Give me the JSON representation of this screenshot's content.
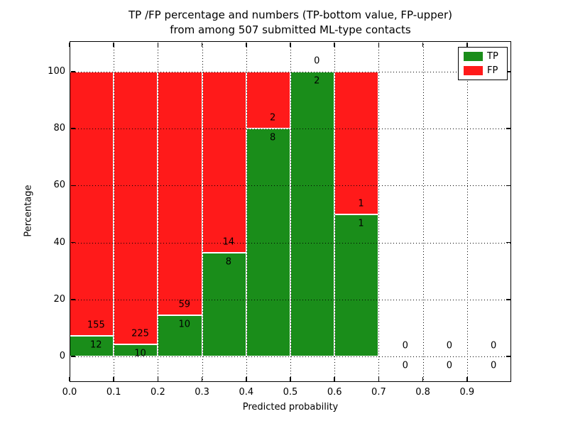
{
  "chart_data": {
    "type": "bar",
    "subtype": "stacked_percentage",
    "title_lines": [
      "TP /FP percentage and numbers (TP-bottom value, FP-upper)",
      "from among 507 submitted ML-type contacts"
    ],
    "xlabel": "Predicted probability",
    "ylabel": "Percentage",
    "xlim": [
      0.0,
      1.0
    ],
    "ylim": [
      0,
      100
    ],
    "grid": "dotted",
    "x_ticks": [
      {
        "value": 0.0,
        "label": "0.0"
      },
      {
        "value": 0.1,
        "label": "0.1"
      },
      {
        "value": 0.2,
        "label": "0.2"
      },
      {
        "value": 0.3,
        "label": "0.3"
      },
      {
        "value": 0.4,
        "label": "0.4"
      },
      {
        "value": 0.5,
        "label": "0.5"
      },
      {
        "value": 0.6,
        "label": "0.6"
      },
      {
        "value": 0.7,
        "label": "0.7"
      },
      {
        "value": 0.8,
        "label": "0.8"
      },
      {
        "value": 0.9,
        "label": "0.9"
      }
    ],
    "y_ticks": [
      {
        "value": 0,
        "label": "0"
      },
      {
        "value": 20,
        "label": "20"
      },
      {
        "value": 40,
        "label": "40"
      },
      {
        "value": 60,
        "label": "60"
      },
      {
        "value": 80,
        "label": "80"
      },
      {
        "value": 100,
        "label": "100"
      }
    ],
    "total_contacts": 507,
    "bins": [
      {
        "range": [
          0.0,
          0.1
        ],
        "tp": 12,
        "fp": 155
      },
      {
        "range": [
          0.1,
          0.2
        ],
        "tp": 10,
        "fp": 225
      },
      {
        "range": [
          0.2,
          0.3
        ],
        "tp": 10,
        "fp": 59
      },
      {
        "range": [
          0.3,
          0.4
        ],
        "tp": 8,
        "fp": 14
      },
      {
        "range": [
          0.4,
          0.5
        ],
        "tp": 8,
        "fp": 2
      },
      {
        "range": [
          0.5,
          0.6
        ],
        "tp": 2,
        "fp": 0
      },
      {
        "range": [
          0.6,
          0.7
        ],
        "tp": 1,
        "fp": 1
      },
      {
        "range": [
          0.7,
          0.8
        ],
        "tp": 0,
        "fp": 0
      },
      {
        "range": [
          0.8,
          0.9
        ],
        "tp": 0,
        "fp": 0
      },
      {
        "range": [
          0.9,
          1.0
        ],
        "tp": 0,
        "fp": 0
      }
    ],
    "colors": {
      "tp": "#1a8d1a",
      "fp": "#ff1a1a",
      "grid": "#000000",
      "bar_edge": "#ffffff"
    },
    "legend": {
      "position": "upper right",
      "entries": [
        {
          "label": "TP",
          "color": "#1a8d1a"
        },
        {
          "label": "FP",
          "color": "#ff1a1a"
        }
      ]
    }
  }
}
